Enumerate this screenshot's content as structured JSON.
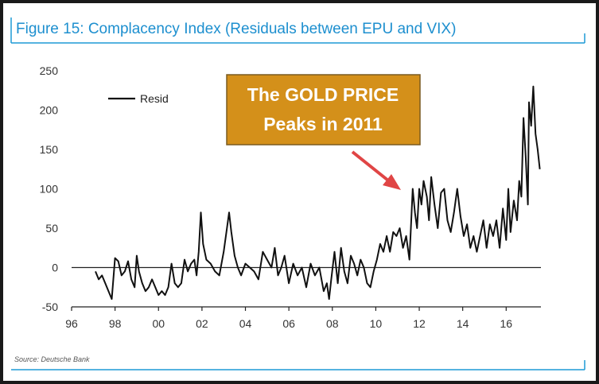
{
  "figure": {
    "title": "Figure 15: Complacency Index (Residuals between EPU and VIX)",
    "source": "Source: Deutsche Bank",
    "colors": {
      "title": "#1d8fcf",
      "accent": "#1d9ad6",
      "line": "#111111",
      "callout": "#d4901a",
      "arrow": "#e04545"
    }
  },
  "callout": {
    "line1": "The GOLD PRICE",
    "line2": "Peaks in 2011"
  },
  "chart_data": {
    "type": "line",
    "title": "Figure 15: Complacency Index (Residuals between EPU and VIX)",
    "xlabel": "",
    "ylabel": "",
    "x_ticks": [
      1996,
      1998,
      2000,
      2002,
      2004,
      2006,
      2008,
      2010,
      2012,
      2014,
      2016
    ],
    "x_tick_labels": [
      "96",
      "98",
      "00",
      "02",
      "04",
      "06",
      "08",
      "10",
      "12",
      "14",
      "16"
    ],
    "y_ticks": [
      250,
      200,
      150,
      100,
      50,
      0,
      -50
    ],
    "y_tick_labels": [
      "250",
      "200",
      "150",
      "100",
      "50",
      "0",
      "-50"
    ],
    "xlim": [
      1996,
      2017.6
    ],
    "ylim": [
      -50,
      250
    ],
    "legend": {
      "label": "Resid",
      "position": "top-left"
    },
    "series": [
      {
        "name": "Resid",
        "x": [
          1997.1,
          1997.25,
          1997.4,
          1997.55,
          1997.7,
          1997.85,
          1998.0,
          1998.15,
          1998.3,
          1998.45,
          1998.6,
          1998.75,
          1998.9,
          1999.0,
          1999.1,
          1999.25,
          1999.4,
          1999.55,
          1999.7,
          1999.85,
          2000.0,
          2000.15,
          2000.3,
          2000.45,
          2000.6,
          2000.75,
          2000.9,
          2001.05,
          2001.2,
          2001.35,
          2001.5,
          2001.65,
          2001.75,
          2001.85,
          2001.95,
          2002.05,
          2002.2,
          2002.4,
          2002.6,
          2002.8,
          2003.0,
          2003.15,
          2003.25,
          2003.35,
          2003.5,
          2003.65,
          2003.8,
          2004.0,
          2004.2,
          2004.4,
          2004.6,
          2004.8,
          2005.0,
          2005.2,
          2005.35,
          2005.5,
          2005.65,
          2005.8,
          2006.0,
          2006.2,
          2006.4,
          2006.6,
          2006.8,
          2007.0,
          2007.2,
          2007.4,
          2007.6,
          2007.75,
          2007.85,
          2007.95,
          2008.1,
          2008.25,
          2008.4,
          2008.55,
          2008.7,
          2008.85,
          2009.0,
          2009.15,
          2009.3,
          2009.45,
          2009.6,
          2009.75,
          2009.9,
          2010.05,
          2010.2,
          2010.35,
          2010.5,
          2010.65,
          2010.8,
          2010.95,
          2011.1,
          2011.25,
          2011.4,
          2011.55,
          2011.7,
          2011.8,
          2011.9,
          2012.0,
          2012.1,
          2012.2,
          2012.35,
          2012.45,
          2012.55,
          2012.7,
          2012.85,
          2013.0,
          2013.15,
          2013.3,
          2013.45,
          2013.6,
          2013.75,
          2013.9,
          2014.05,
          2014.2,
          2014.35,
          2014.5,
          2014.65,
          2014.8,
          2014.95,
          2015.1,
          2015.25,
          2015.4,
          2015.55,
          2015.7,
          2015.85,
          2016.0,
          2016.1,
          2016.2,
          2016.35,
          2016.5,
          2016.6,
          2016.7,
          2016.8,
          2016.9,
          2017.0,
          2017.05,
          2017.15,
          2017.25,
          2017.35,
          2017.45,
          2017.55
        ],
        "values": [
          -5,
          -15,
          -10,
          -20,
          -30,
          -40,
          12,
          8,
          -10,
          -5,
          8,
          -15,
          -25,
          15,
          -5,
          -20,
          -30,
          -25,
          -15,
          -25,
          -35,
          -30,
          -35,
          -25,
          5,
          -20,
          -25,
          -20,
          10,
          -5,
          5,
          10,
          -10,
          20,
          70,
          30,
          10,
          5,
          -5,
          -10,
          20,
          50,
          70,
          45,
          15,
          0,
          -10,
          5,
          0,
          -5,
          -15,
          20,
          10,
          0,
          25,
          -10,
          0,
          15,
          -20,
          5,
          -10,
          0,
          -25,
          5,
          -10,
          0,
          -30,
          -20,
          -40,
          -15,
          20,
          -20,
          25,
          -5,
          -20,
          15,
          5,
          -10,
          10,
          0,
          -20,
          -25,
          -5,
          10,
          30,
          20,
          40,
          20,
          45,
          40,
          50,
          25,
          40,
          10,
          100,
          70,
          50,
          100,
          80,
          110,
          90,
          60,
          115,
          80,
          50,
          95,
          100,
          60,
          45,
          70,
          100,
          65,
          40,
          55,
          25,
          40,
          20,
          40,
          60,
          25,
          55,
          40,
          60,
          25,
          75,
          35,
          100,
          45,
          85,
          60,
          110,
          90,
          190,
          140,
          80,
          210,
          180,
          230,
          170,
          150,
          125
        ]
      }
    ]
  }
}
